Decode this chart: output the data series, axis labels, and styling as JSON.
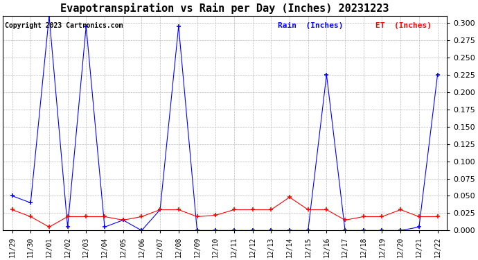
{
  "title": "Evapotranspiration vs Rain per Day (Inches) 20231223",
  "copyright": "Copyright 2023 Cartronics.com",
  "xlabels": [
    "11/29",
    "11/30",
    "12/01",
    "12/02",
    "12/03",
    "12/04",
    "12/05",
    "12/06",
    "12/07",
    "12/08",
    "12/09",
    "12/10",
    "12/11",
    "12/12",
    "12/13",
    "12/14",
    "12/15",
    "12/16",
    "12/17",
    "12/18",
    "12/19",
    "12/20",
    "12/21",
    "12/22"
  ],
  "rain_values": [
    0.05,
    0.04,
    0.31,
    0.005,
    0.295,
    0.005,
    0.015,
    0.0,
    0.03,
    0.295,
    0.0,
    0.0,
    0.0,
    0.0,
    0.0,
    0.0,
    0.0,
    0.225,
    0.0,
    0.0,
    0.0,
    0.0,
    0.005,
    0.225
  ],
  "et_values": [
    0.03,
    0.02,
    0.005,
    0.02,
    0.02,
    0.02,
    0.015,
    0.02,
    0.03,
    0.03,
    0.02,
    0.022,
    0.03,
    0.03,
    0.03,
    0.048,
    0.03,
    0.03,
    0.015,
    0.02,
    0.02,
    0.03,
    0.02,
    0.02
  ],
  "rain_color": "#0000ff",
  "et_color": "#ff0000",
  "ylim": [
    0.0,
    0.31
  ],
  "yticks": [
    0.0,
    0.025,
    0.05,
    0.075,
    0.1,
    0.125,
    0.15,
    0.175,
    0.2,
    0.225,
    0.25,
    0.275,
    0.3
  ],
  "background_color": "#ffffff",
  "grid_color": "#bbbbbb",
  "title_fontsize": 11,
  "copyright_fontsize": 7,
  "legend_rain": "Rain  (Inches)",
  "legend_et": "ET  (Inches)",
  "tick_fontsize": 8,
  "xlabel_fontsize": 7
}
